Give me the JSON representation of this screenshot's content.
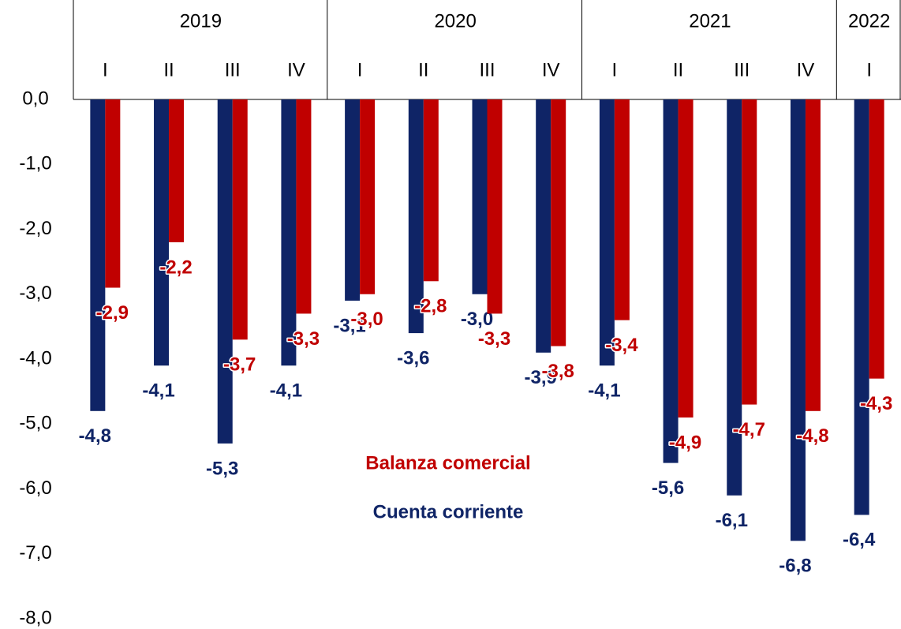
{
  "chart_data": {
    "type": "bar",
    "categories": [
      "I",
      "II",
      "III",
      "IV",
      "I",
      "II",
      "III",
      "IV",
      "I",
      "II",
      "III",
      "IV",
      "I"
    ],
    "groups": [
      {
        "name": "2019",
        "size": 4
      },
      {
        "name": "2020",
        "size": 4
      },
      {
        "name": "2021",
        "size": 4
      },
      {
        "name": "2022",
        "size": 1
      }
    ],
    "series": [
      {
        "name": "Cuenta corriente",
        "color": "#0f2466",
        "values": [
          -4.8,
          -4.1,
          -5.3,
          -4.1,
          -3.1,
          -3.6,
          -3.0,
          -3.9,
          -4.1,
          -5.6,
          -6.1,
          -6.8,
          -6.4
        ],
        "value_labels": [
          "-4,8",
          "-4,1",
          "-5,3",
          "-4,1",
          "-3,1",
          "-3,6",
          "-3,0",
          "-3,9",
          "-4,1",
          "-5,6",
          "-6,1",
          "-6,8",
          "-6,4"
        ]
      },
      {
        "name": "Balanza comercial",
        "color": "#c00000",
        "values": [
          -2.9,
          -2.2,
          -3.7,
          -3.3,
          -3.0,
          -2.8,
          -3.3,
          -3.8,
          -3.4,
          -4.9,
          -4.7,
          -4.8,
          -4.3
        ],
        "value_labels": [
          "-2,9",
          "-2,2",
          "-3,7",
          "-3,3",
          "-3,0",
          "-2,8",
          "-3,3",
          "-3,8",
          "-3,4",
          "-4,9",
          "-4,7",
          "-4,8",
          "-4,3"
        ]
      }
    ],
    "ylim": [
      -8,
      0
    ],
    "yticks": [
      {
        "value": 0,
        "label": "0,0"
      },
      {
        "value": -1,
        "label": "-1,0"
      },
      {
        "value": -2,
        "label": "-2,0"
      },
      {
        "value": -3,
        "label": "-3,0"
      },
      {
        "value": -4,
        "label": "-4,0"
      },
      {
        "value": -5,
        "label": "-5,0"
      },
      {
        "value": -6,
        "label": "-6,0"
      },
      {
        "value": -7,
        "label": "-7,0"
      },
      {
        "value": -8,
        "label": "-8,0"
      }
    ],
    "grid": false,
    "legend": "center"
  }
}
